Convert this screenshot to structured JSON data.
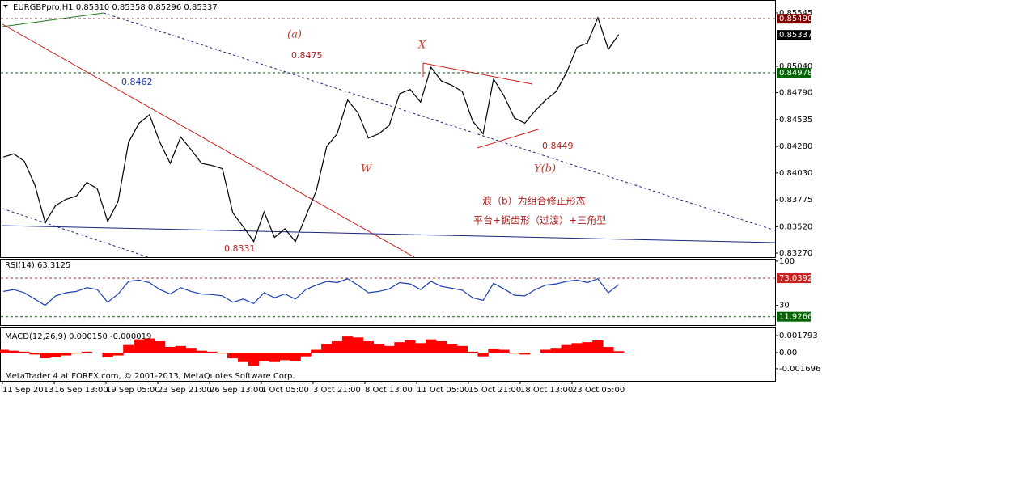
{
  "header": "EURGBPpro,H1  0.85310 0.85358 0.85296 0.85337",
  "footer": "MetaTrader 4 at FOREX.com, © 2001-2013, MetaQuotes Software Corp.",
  "annotations": [
    "(a)",
    "0.8475",
    "0.8462",
    "X",
    "W",
    "0.8449",
    "Y(b)",
    "0.8331",
    "浪（b）为组合修正形态",
    "平台+锯齿形（过渡）+三角型"
  ],
  "time_labels": [
    "11 Sep 2013",
    "16 Sep 13:00",
    "19 Sep 05:00",
    "23 Sep 21:00",
    "26 Sep 13:00",
    "1 Oct 05:00",
    "3 Oct 21:00",
    "8 Oct 13:00",
    "11 Oct 05:00",
    "15 Oct 21:00",
    "18 Oct 13:00",
    "23 Oct 05:00"
  ],
  "chart_data": [
    {
      "type": "line",
      "color": "#000000",
      "xlim": [
        -0.25,
        74
      ],
      "ylim": [
        0.83232,
        0.85652
      ],
      "yticks": [
        {
          "value": 0.85545,
          "label": "0.85545"
        },
        {
          "value": 0.8504,
          "label": "0.85040"
        },
        {
          "value": 0.8479,
          "label": "0.84790"
        },
        {
          "value": 0.84535,
          "label": "0.84535"
        },
        {
          "value": 0.8428,
          "label": "0.84280"
        },
        {
          "value": 0.8403,
          "label": "0.84030"
        },
        {
          "value": 0.83775,
          "label": "0.83775"
        },
        {
          "value": 0.8352,
          "label": "0.83520"
        },
        {
          "value": 0.8327,
          "label": "0.83270"
        }
      ],
      "levels": [
        {
          "value": 0.8549,
          "label": "0.85490",
          "color": "#800000",
          "line": true
        },
        {
          "value": 0.85337,
          "label": "0.85337",
          "color": "#000000",
          "line": false
        },
        {
          "value": 0.84978,
          "label": "0.84978",
          "color": "#006400",
          "line": true
        }
      ],
      "values": [
        0.8418,
        0.8421,
        0.8414,
        0.8392,
        0.8356,
        0.8372,
        0.8378,
        0.8381,
        0.8394,
        0.8388,
        0.8357,
        0.8376,
        0.8432,
        0.845,
        0.8458,
        0.8432,
        0.8412,
        0.8437,
        0.8425,
        0.8412,
        0.841,
        0.8407,
        0.8365,
        0.8352,
        0.8338,
        0.8366,
        0.8342,
        0.835,
        0.8338,
        0.8362,
        0.8386,
        0.8428,
        0.844,
        0.8472,
        0.846,
        0.8436,
        0.844,
        0.8448,
        0.8478,
        0.8482,
        0.847,
        0.8503,
        0.849,
        0.8486,
        0.848,
        0.8452,
        0.844,
        0.8492,
        0.8476,
        0.8455,
        0.845,
        0.8462,
        0.8472,
        0.848,
        0.8498,
        0.8522,
        0.8526,
        0.855,
        0.852,
        0.8534
      ]
    },
    {
      "type": "line",
      "title": "RSI(14) 63.3125",
      "color": "#1f3fb0",
      "ylim": [
        0,
        100
      ],
      "yticks": [
        100,
        30
      ],
      "levels": [
        {
          "value": 73.03922,
          "label": "73.03922",
          "color": "#cc1f1f",
          "line": true
        },
        {
          "value": 11.92661,
          "label": "11.92661",
          "color": "#006400",
          "line": true
        }
      ],
      "values": [
        52,
        55,
        50,
        40,
        30,
        45,
        50,
        52,
        58,
        55,
        35,
        48,
        68,
        70,
        66,
        55,
        48,
        58,
        52,
        48,
        47,
        45,
        35,
        40,
        33,
        50,
        42,
        48,
        40,
        55,
        62,
        68,
        66,
        72,
        62,
        50,
        52,
        56,
        66,
        64,
        55,
        68,
        60,
        57,
        54,
        42,
        38,
        65,
        56,
        46,
        45,
        55,
        62,
        64,
        68,
        70,
        66,
        72,
        50,
        63
      ]
    },
    {
      "type": "bar",
      "title": "MACD(12,26,9) 0.000150 -0.000019",
      "color": "#ff0000",
      "ylim": [
        -0.0029,
        0.00265
      ],
      "yticks": [
        0.001793,
        {
          "value": 0,
          "label": "0.00"
        },
        -0.001696
      ],
      "values": [
        0.0003,
        0.0002,
        0.0001,
        -0.0002,
        -0.0006,
        -0.0005,
        -0.0003,
        -0.0001,
        0.0001,
        0,
        -0.0005,
        -0.0003,
        0.0008,
        0.0014,
        0.0015,
        0.0012,
        0.0006,
        0.0007,
        0.0005,
        0.0002,
        0.0001,
        -0.0001,
        -0.0006,
        -0.001,
        -0.0014,
        -0.0009,
        -0.001,
        -0.0008,
        -0.0009,
        -0.0004,
        0.0003,
        0.0009,
        0.0012,
        0.0017,
        0.0016,
        0.0012,
        0.0009,
        0.0007,
        0.0011,
        0.0013,
        0.001,
        0.0014,
        0.0012,
        0.0009,
        0.0007,
        0.0001,
        -0.0004,
        0.0004,
        0.0003,
        -0.0001,
        -0.0002,
        0,
        0.0003,
        0.0005,
        0.0008,
        0.001,
        0.0011,
        0.0013,
        0.0006,
        0.00015
      ]
    }
  ]
}
